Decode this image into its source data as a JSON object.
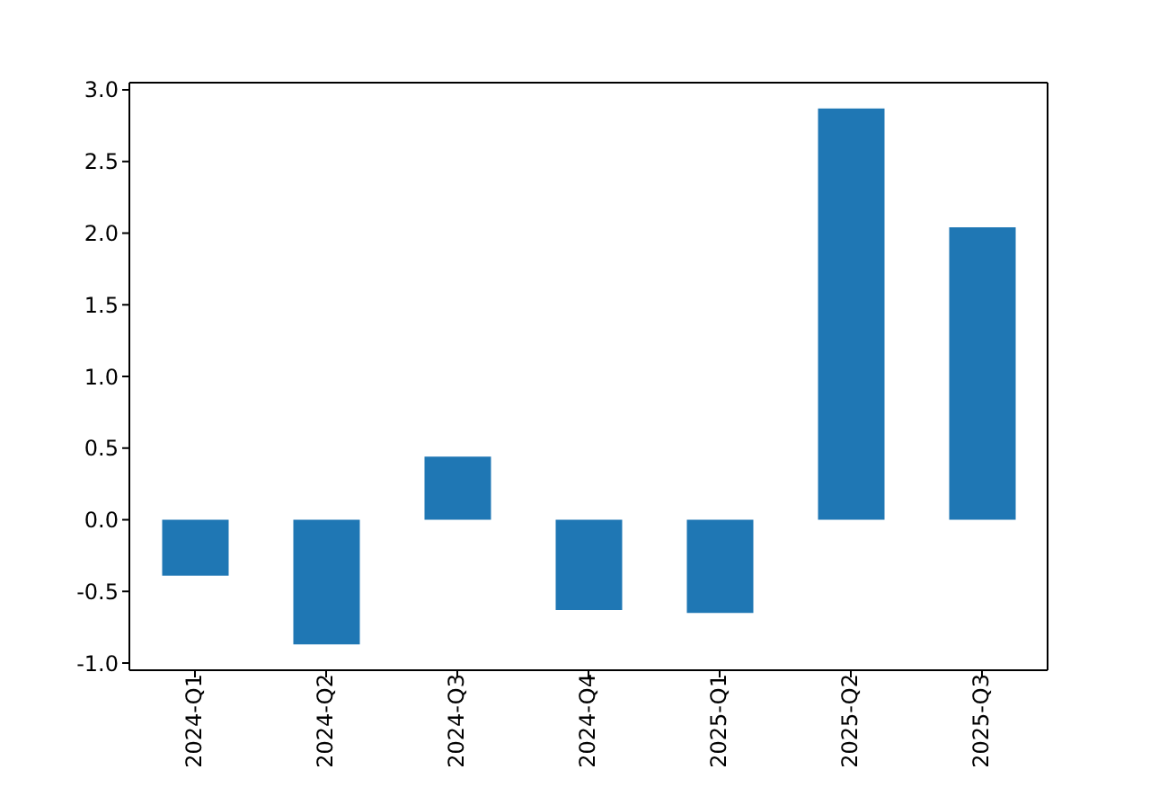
{
  "chart_data": {
    "type": "bar",
    "categories": [
      "2024-Q1",
      "2024-Q2",
      "2024-Q3",
      "2024-Q4",
      "2025-Q1",
      "2025-Q2",
      "2025-Q3"
    ],
    "series": [
      {
        "color": "#1f77b4",
        "values": [
          -0.39,
          -0.87,
          0.44,
          -0.63,
          -0.65,
          2.87,
          2.04
        ]
      }
    ],
    "ylim": [
      -1.05,
      3.05
    ],
    "yticks": [
      {
        "value": -1,
        "label": "-1.0"
      },
      -0.5,
      {
        "value": 0,
        "label": "0.0"
      },
      0.5,
      {
        "value": 1,
        "label": "1.0"
      },
      1.5,
      {
        "value": 2,
        "label": "2.0"
      },
      2.5,
      {
        "value": 3,
        "label": "3.0"
      }
    ],
    "grid": false
  }
}
